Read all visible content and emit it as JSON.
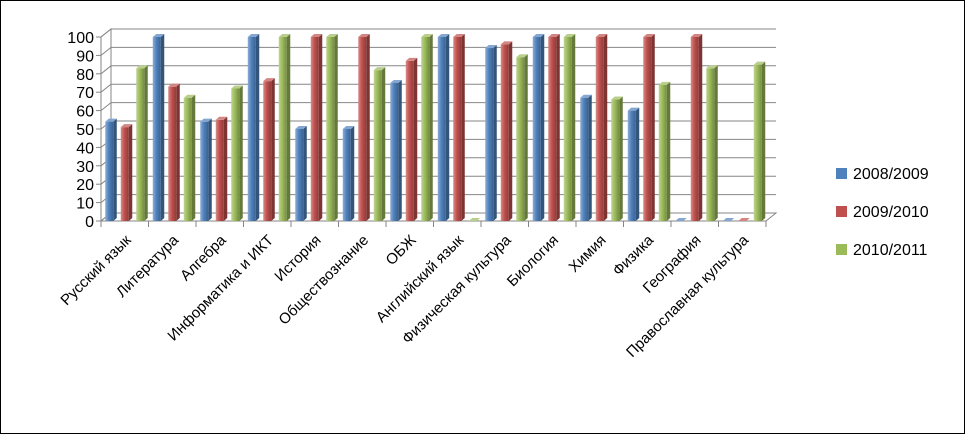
{
  "chart_data": {
    "type": "bar",
    "categories": [
      "Русский язык",
      "Литература",
      "Алгебра",
      "Информатика и ИКТ",
      "История",
      "Обществознание",
      "ОБЖ",
      "Английский язык",
      "Физическая культура",
      "Биология",
      "Химия",
      "Физика",
      "География",
      "Православная культура"
    ],
    "series": [
      {
        "name": "2008/2009",
        "color": "#4F81BD",
        "values": [
          54,
          100,
          54,
          100,
          50,
          50,
          75,
          100,
          94,
          100,
          67,
          60,
          0,
          0
        ]
      },
      {
        "name": "2009/2010",
        "color": "#C0504D",
        "values": [
          51,
          73,
          55,
          76,
          100,
          100,
          87,
          100,
          96,
          100,
          100,
          100,
          100,
          0
        ]
      },
      {
        "name": "2010/2011",
        "color": "#9BBB59",
        "values": [
          83,
          67,
          72,
          100,
          100,
          82,
          100,
          0,
          89,
          100,
          66,
          74,
          83,
          85
        ]
      }
    ],
    "ylim": [
      0,
      100
    ],
    "yticks": [
      "0",
      "10",
      "20",
      "30",
      "40",
      "50",
      "60",
      "70",
      "80",
      "90",
      "100"
    ],
    "grid": true,
    "legend": "right"
  }
}
